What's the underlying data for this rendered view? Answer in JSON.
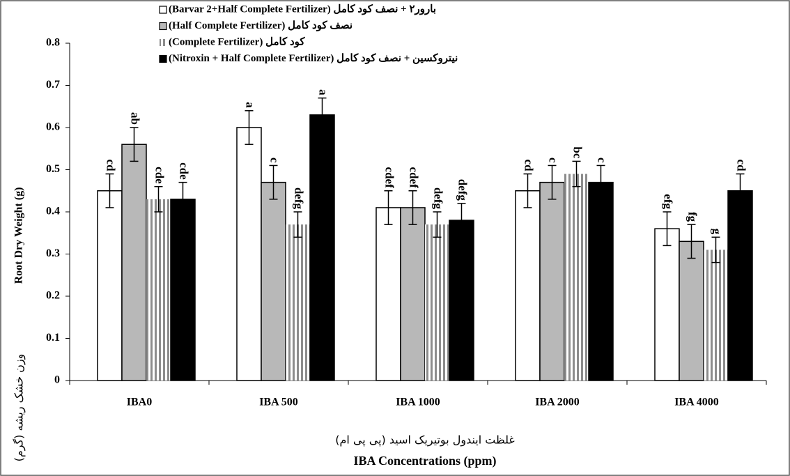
{
  "chart_data": {
    "type": "bar",
    "categories": [
      "IBA0",
      "IBA 500",
      "IBA 1000",
      "IBA 2000",
      "IBA 4000"
    ],
    "series": [
      {
        "name": "(Barvar 2+Half Complete  Fertilizer) بارور۲ + نصف کود کامل",
        "color": "#ffffff",
        "values": [
          0.45,
          0.6,
          0.41,
          0.45,
          0.36
        ],
        "errors": [
          0.04,
          0.04,
          0.04,
          0.04,
          0.04
        ],
        "letters": [
          "cd",
          "a",
          "cdef",
          "cd",
          "efg"
        ]
      },
      {
        "name": "(Half Complete  Fertilizer)  نصف کود کامل",
        "color": "#b8b8b8",
        "values": [
          0.56,
          0.47,
          0.41,
          0.47,
          0.33
        ],
        "errors": [
          0.04,
          0.04,
          0.04,
          0.04,
          0.04
        ],
        "letters": [
          "ab",
          "c",
          "cdef",
          "c",
          "fg"
        ]
      },
      {
        "name": "(Complete Fertilizer)  کود کامل",
        "color": "#8c8c8c",
        "hatch": "vertical",
        "values": [
          0.43,
          0.37,
          0.37,
          0.49,
          0.31
        ],
        "errors": [
          0.03,
          0.03,
          0.03,
          0.03,
          0.03
        ],
        "letters": [
          "cde",
          "defg",
          "defg",
          "bc",
          "g"
        ]
      },
      {
        "name": "(Nitroxin + Half Complete  Fertilizer)   نیتروکسین + نصف کود کامل",
        "color": "#000000",
        "values": [
          0.43,
          0.63,
          0.38,
          0.47,
          0.45
        ],
        "errors": [
          0.04,
          0.04,
          0.04,
          0.04,
          0.04
        ],
        "letters": [
          "cde",
          "a",
          "defg",
          "c",
          "cd"
        ]
      }
    ],
    "ylabel": [
      "وزن خشک ریشه (گرم)",
      "Root Dry Weight (g)"
    ],
    "xlabel": [
      "غلظت ایندول بوتیریک اسید (پی پی ام)",
      "IBA  Concentrations (ppm)"
    ],
    "ylim": [
      0,
      0.8
    ],
    "yticks": [
      0,
      0.1,
      0.2,
      0.3,
      0.4,
      0.5,
      0.6,
      0.7,
      0.8
    ],
    "legend": "top"
  }
}
